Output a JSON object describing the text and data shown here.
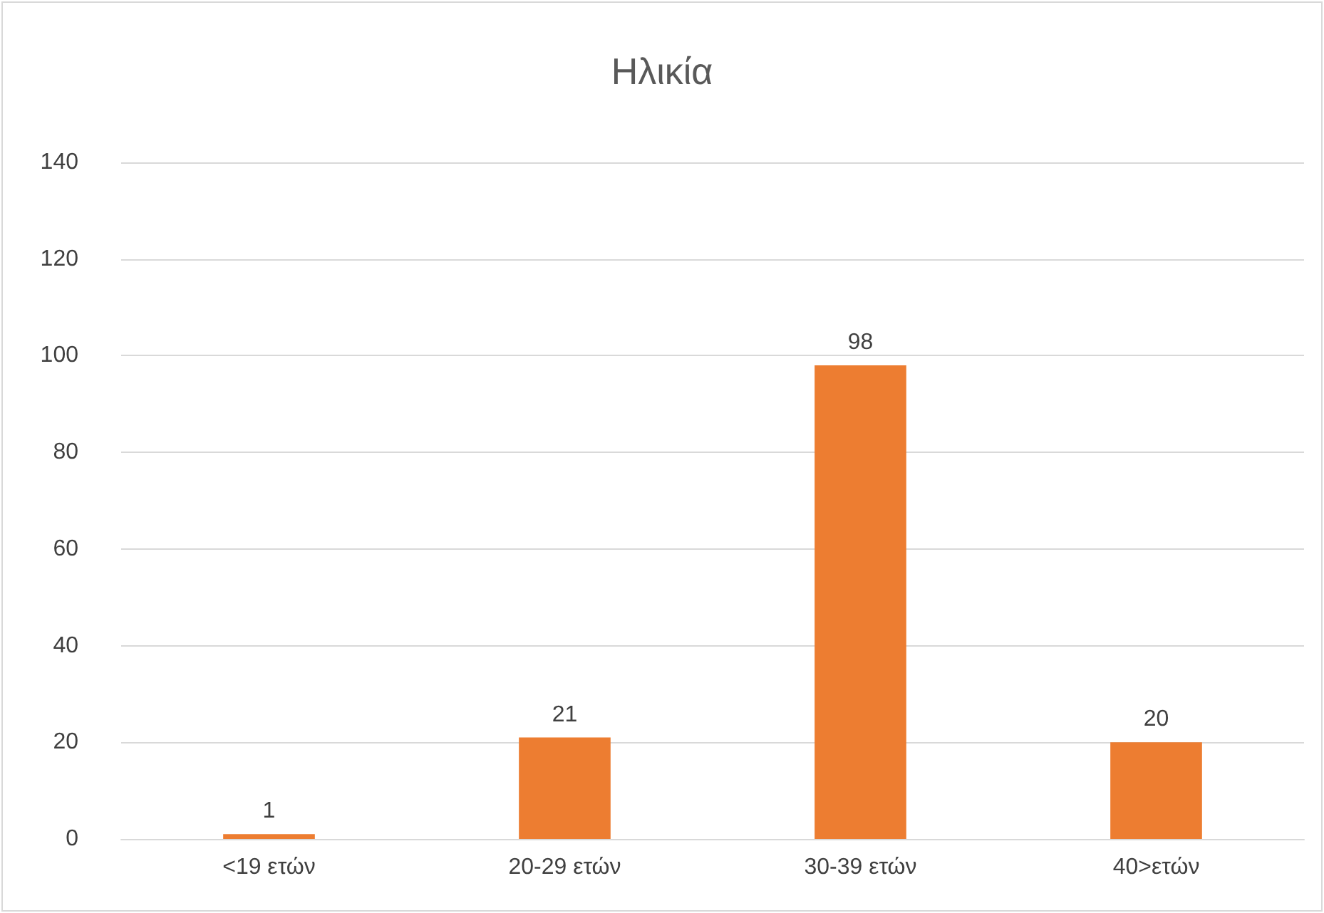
{
  "chart_data": {
    "type": "bar",
    "title": "Ηλικία",
    "categories": [
      "<19 ετών",
      "20-29 ετών",
      "30-39 ετών",
      "40>ετών"
    ],
    "values": [
      1,
      21,
      98,
      20
    ],
    "color": "#ed7d31",
    "ylim": [
      0,
      140
    ],
    "yticks": [
      0,
      20,
      40,
      60,
      80,
      100,
      120,
      140
    ],
    "grid": "y",
    "data_labels": true
  }
}
